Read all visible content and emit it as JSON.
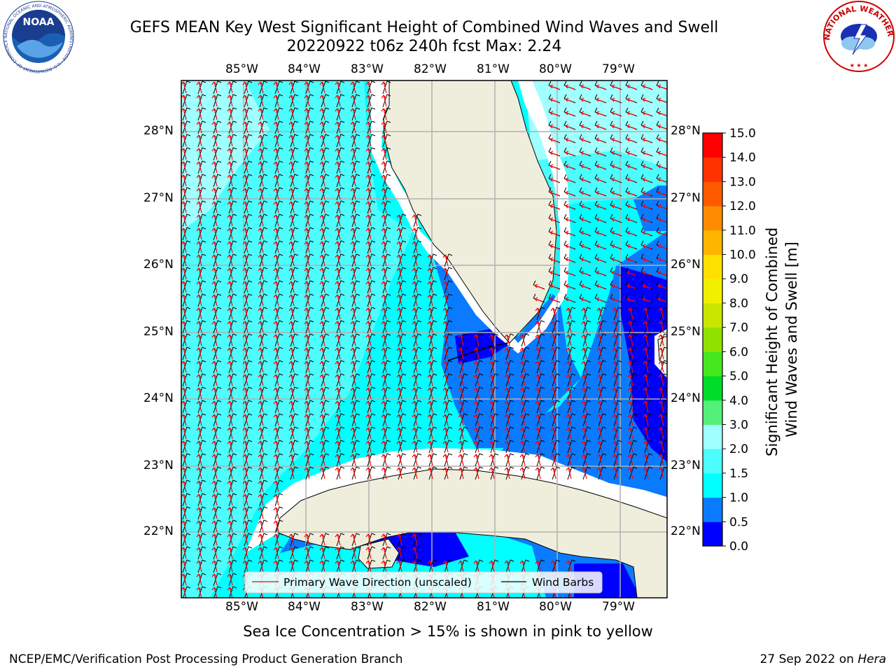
{
  "title": {
    "line1": "GEFS MEAN Key West Significant Height of Combined Wind Waves and Swell",
    "line2": "20220922 t06z 240h fcst   Max: 2.24"
  },
  "map": {
    "lon_labels": [
      "85°W",
      "84°W",
      "83°W",
      "82°W",
      "81°W",
      "80°W",
      "79°W"
    ],
    "lat_labels": [
      "28°N",
      "27°N",
      "26°N",
      "25°N",
      "24°N",
      "23°N",
      "22°N"
    ],
    "extent": {
      "lon": [
        -86,
        -78.3
      ],
      "lat": [
        21.05,
        28.8
      ]
    },
    "region": "Key West / South Florida / Cuba"
  },
  "legend": {
    "wave_label": "Primary Wave Direction (unscaled)",
    "barb_label": "Wind Barbs",
    "wave_color": "#ff0000",
    "barb_color": "#000000"
  },
  "colorbar": {
    "label_line1": "Significant Height of Combined",
    "label_line2": "Wind Waves and Swell [m]",
    "ticks": [
      "0.0",
      "0.5",
      "1.0",
      "1.5",
      "2.0",
      "3.0",
      "4.0",
      "5.0",
      "6.0",
      "7.0",
      "8.0",
      "9.0",
      "10.0",
      "11.0",
      "12.0",
      "13.0",
      "14.0",
      "15.0"
    ],
    "colors": [
      "#0000ff",
      "#0a7bff",
      "#00ffff",
      "#4dfcfc",
      "#a0ffff",
      "#55f07a",
      "#00dc28",
      "#45e81e",
      "#90e000",
      "#c8e600",
      "#f0f000",
      "#ffe000",
      "#ffb400",
      "#ff8c00",
      "#ff5a00",
      "#ff3200",
      "#ff0000"
    ]
  },
  "caption": "Sea Ice Concentration > 15% is shown in pink to yellow",
  "footer": {
    "left": "NCEP/EMC/Verification Post Processing Product Generation Branch",
    "right_prefix": "27 Sep 2022 on ",
    "right_host": "Hera"
  },
  "logos": {
    "noaa_text": "NOAA",
    "noaa_ring": "NATIONAL OCEANIC AND ATMOSPHERIC ADMINISTRATION · U.S. DEPARTMENT OF COMMERCE",
    "nws_ring": "NATIONAL WEATHER SERVICE"
  }
}
